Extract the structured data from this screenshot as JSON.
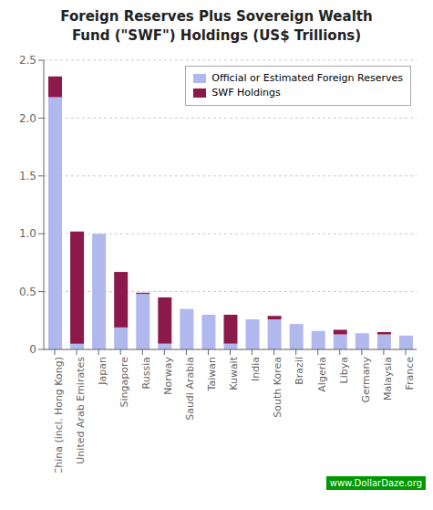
{
  "chart_data": {
    "type": "bar",
    "title": "Foreign Reserves Plus Sovereign Wealth\nFund (\"SWF\") Holdings (US$ Trillions)",
    "categories": [
      "China (incl. Hong Kong)",
      "United Arab Emirates",
      "Japan",
      "Singapore",
      "Russia",
      "Norway",
      "Saudi Arabia",
      "Taiwan",
      "Kuwait",
      "India",
      "South Korea",
      "Brazil",
      "Algeria",
      "Libya",
      "Germany",
      "Malaysia",
      "France"
    ],
    "series": [
      {
        "name": "Official or Estimated Foreign Reserves",
        "color": "#b0b8ee",
        "values": [
          2.18,
          0.05,
          1.0,
          0.19,
          0.48,
          0.05,
          0.35,
          0.3,
          0.05,
          0.26,
          0.26,
          0.22,
          0.16,
          0.13,
          0.14,
          0.13,
          0.12
        ]
      },
      {
        "name": "SWF Holdings",
        "color": "#8b1a4a",
        "values": [
          0.18,
          0.97,
          0.0,
          0.48,
          0.01,
          0.4,
          0.0,
          0.0,
          0.25,
          0.0,
          0.03,
          0.0,
          0.0,
          0.04,
          0.0,
          0.02,
          0.0
        ]
      }
    ],
    "stacked": true,
    "ylim": [
      0,
      2.5
    ],
    "yticks": [
      0,
      0.5,
      {
        "value": 1,
        "label": "1.0"
      },
      1.5,
      {
        "value": 2,
        "label": "2.0"
      },
      2.5
    ],
    "grid": true,
    "legend": "upper right",
    "annotations": [
      "www.DollarDaze.org"
    ]
  }
}
